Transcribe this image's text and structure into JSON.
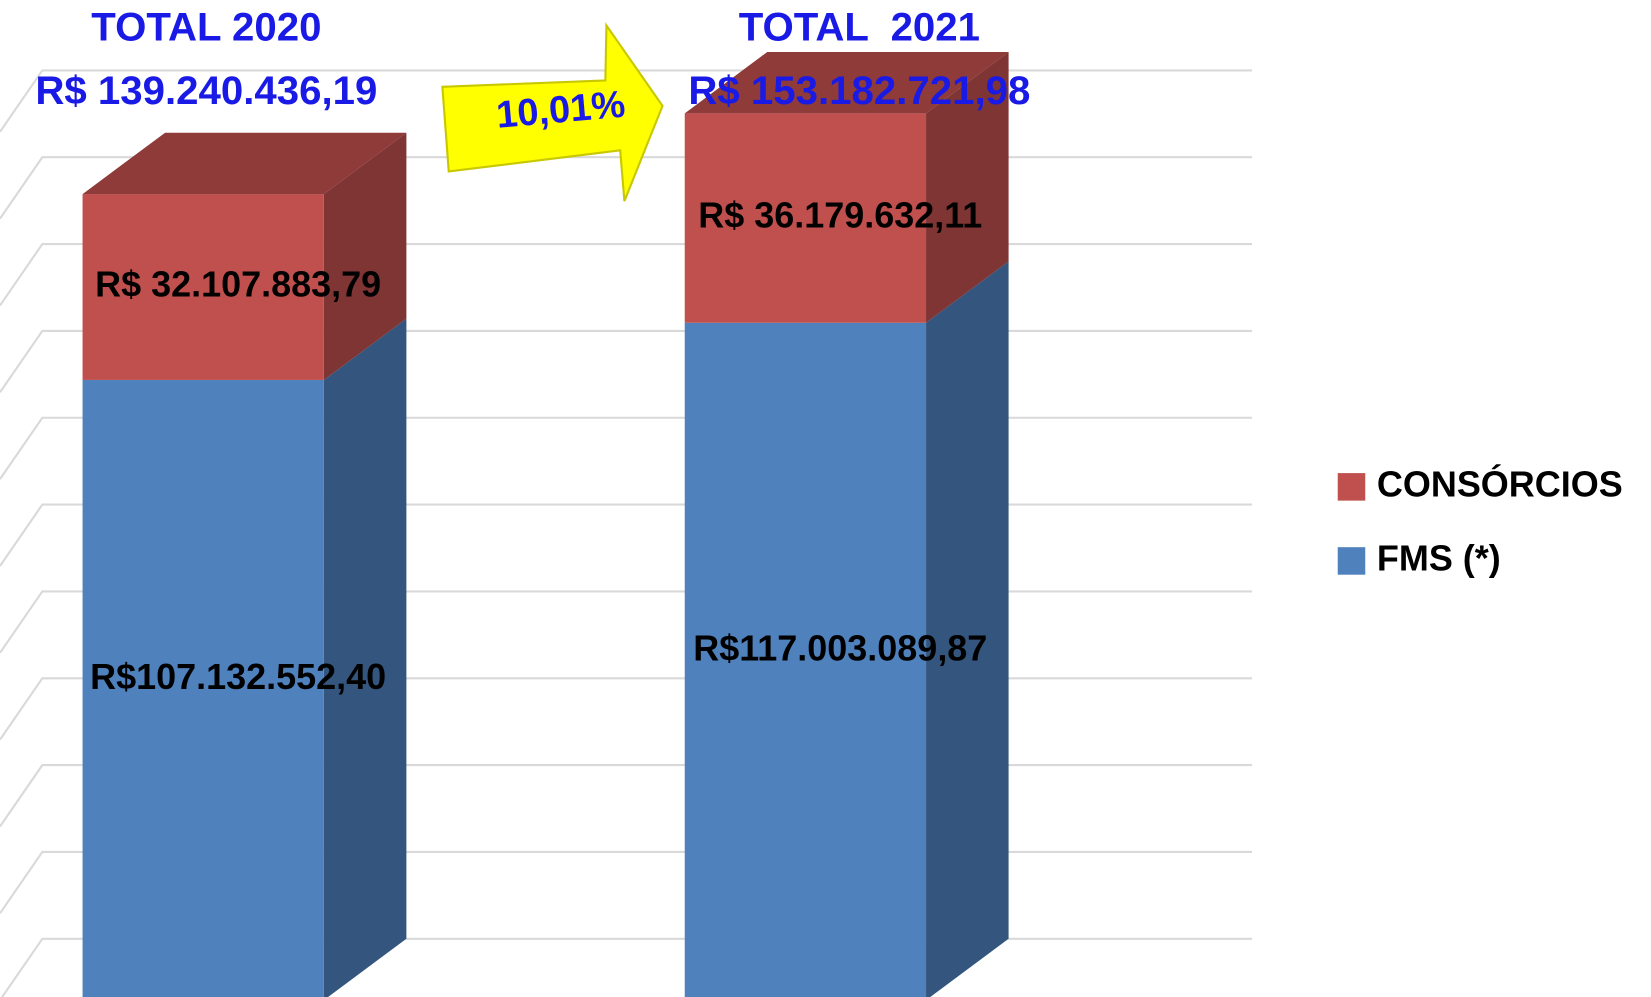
{
  "chart_data": {
    "type": "bar3d_stacked",
    "categories": [
      null,
      null
    ],
    "series": [
      {
        "name": "FMS (*)",
        "color": "#4f81bd",
        "values": [
          107132552.4,
          117003089.87
        ],
        "value_labels": [
          "R$107.132.552,40",
          "R$117.003.089,87"
        ]
      },
      {
        "name": "CONSÓRCIOS",
        "color": "#c0504d",
        "values": [
          32107883.79,
          36179632.11
        ],
        "value_labels": [
          "R$ 32.107.883,79",
          "R$ 36.179.632,11"
        ]
      }
    ],
    "annotations": [
      {
        "category": 0,
        "title": "TOTAL 2020",
        "total": "R$ 139.240.436,19"
      },
      {
        "category": 1,
        "title": "TOTAL  2021",
        "total": "R$ 153.182.721,98"
      }
    ],
    "growth_label": "10,01%",
    "ylim": [
      0,
      160000000
    ],
    "yticks": [
      0,
      15000000,
      30000000,
      45000000,
      60000000,
      75000000,
      90000000,
      105000000,
      120000000,
      135000000,
      150000000
    ],
    "grid": true,
    "legend": "right"
  }
}
